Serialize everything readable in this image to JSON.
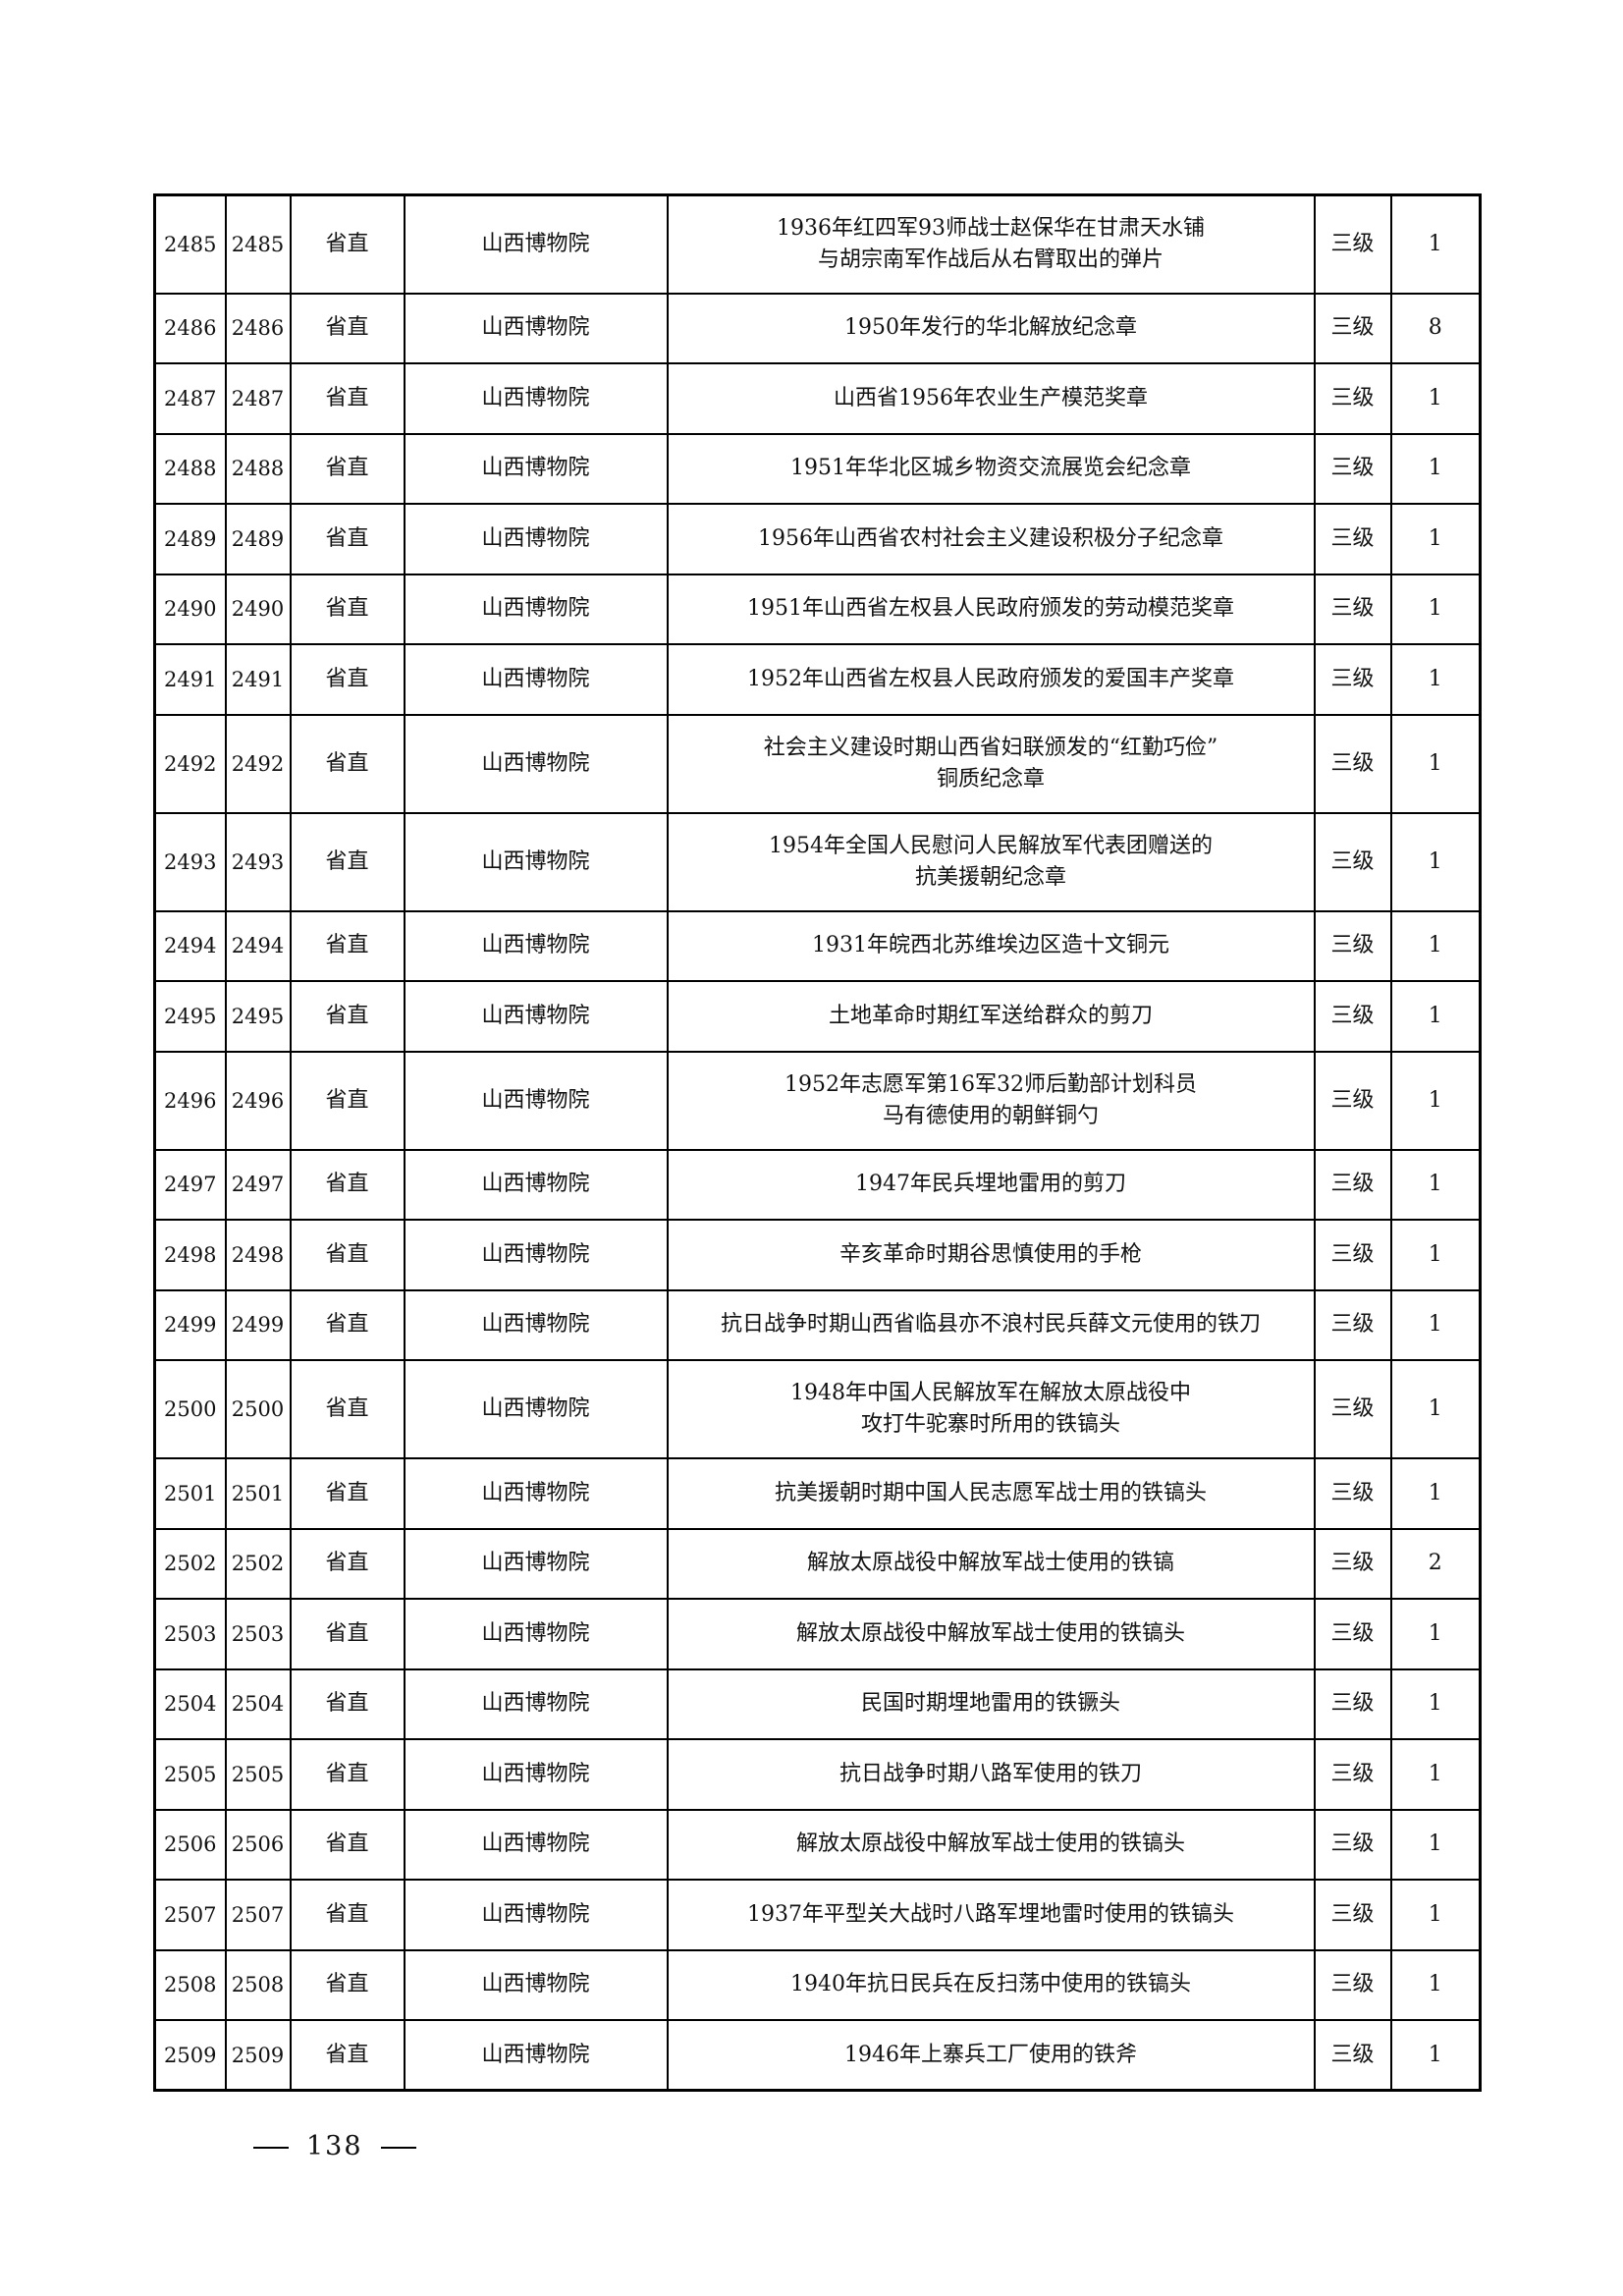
{
  "table": {
    "rows": [
      {
        "seq": "2485",
        "no": "2485",
        "level": "省直",
        "unit": "山西博物院",
        "name": [
          "1936年红四军93师战士赵保华在甘肃天水铺",
          "与胡宗南军作战后从右臂取出的弹片"
        ],
        "grade": "三级",
        "qty": "1"
      },
      {
        "seq": "2486",
        "no": "2486",
        "level": "省直",
        "unit": "山西博物院",
        "name": [
          "1950年发行的华北解放纪念章"
        ],
        "grade": "三级",
        "qty": "8"
      },
      {
        "seq": "2487",
        "no": "2487",
        "level": "省直",
        "unit": "山西博物院",
        "name": [
          "山西省1956年农业生产模范奖章"
        ],
        "grade": "三级",
        "qty": "1"
      },
      {
        "seq": "2488",
        "no": "2488",
        "level": "省直",
        "unit": "山西博物院",
        "name": [
          "1951年华北区城乡物资交流展览会纪念章"
        ],
        "grade": "三级",
        "qty": "1"
      },
      {
        "seq": "2489",
        "no": "2489",
        "level": "省直",
        "unit": "山西博物院",
        "name": [
          "1956年山西省农村社会主义建设积极分子纪念章"
        ],
        "grade": "三级",
        "qty": "1"
      },
      {
        "seq": "2490",
        "no": "2490",
        "level": "省直",
        "unit": "山西博物院",
        "name": [
          "1951年山西省左权县人民政府颁发的劳动模范奖章"
        ],
        "grade": "三级",
        "qty": "1"
      },
      {
        "seq": "2491",
        "no": "2491",
        "level": "省直",
        "unit": "山西博物院",
        "name": [
          "1952年山西省左权县人民政府颁发的爱国丰产奖章"
        ],
        "grade": "三级",
        "qty": "1"
      },
      {
        "seq": "2492",
        "no": "2492",
        "level": "省直",
        "unit": "山西博物院",
        "name": [
          "社会主义建设时期山西省妇联颁发的“红勤巧俭”",
          "铜质纪念章"
        ],
        "grade": "三级",
        "qty": "1"
      },
      {
        "seq": "2493",
        "no": "2493",
        "level": "省直",
        "unit": "山西博物院",
        "name": [
          "1954年全国人民慰问人民解放军代表团赠送的",
          "抗美援朝纪念章"
        ],
        "grade": "三级",
        "qty": "1"
      },
      {
        "seq": "2494",
        "no": "2494",
        "level": "省直",
        "unit": "山西博物院",
        "name": [
          "1931年皖西北苏维埃边区造十文铜元"
        ],
        "grade": "三级",
        "qty": "1"
      },
      {
        "seq": "2495",
        "no": "2495",
        "level": "省直",
        "unit": "山西博物院",
        "name": [
          "土地革命时期红军送给群众的剪刀"
        ],
        "grade": "三级",
        "qty": "1"
      },
      {
        "seq": "2496",
        "no": "2496",
        "level": "省直",
        "unit": "山西博物院",
        "name": [
          "1952年志愿军第16军32师后勤部计划科员",
          "马有德使用的朝鲜铜勺"
        ],
        "grade": "三级",
        "qty": "1"
      },
      {
        "seq": "2497",
        "no": "2497",
        "level": "省直",
        "unit": "山西博物院",
        "name": [
          "1947年民兵埋地雷用的剪刀"
        ],
        "grade": "三级",
        "qty": "1"
      },
      {
        "seq": "2498",
        "no": "2498",
        "level": "省直",
        "unit": "山西博物院",
        "name": [
          "辛亥革命时期谷思慎使用的手枪"
        ],
        "grade": "三级",
        "qty": "1"
      },
      {
        "seq": "2499",
        "no": "2499",
        "level": "省直",
        "unit": "山西博物院",
        "name": [
          "抗日战争时期山西省临县亦不浪村民兵薛文元使用的铁刀"
        ],
        "grade": "三级",
        "qty": "1"
      },
      {
        "seq": "2500",
        "no": "2500",
        "level": "省直",
        "unit": "山西博物院",
        "name": [
          "1948年中国人民解放军在解放太原战役中",
          "攻打牛驼寨时所用的铁镐头"
        ],
        "grade": "三级",
        "qty": "1"
      },
      {
        "seq": "2501",
        "no": "2501",
        "level": "省直",
        "unit": "山西博物院",
        "name": [
          "抗美援朝时期中国人民志愿军战士用的铁镐头"
        ],
        "grade": "三级",
        "qty": "1"
      },
      {
        "seq": "2502",
        "no": "2502",
        "level": "省直",
        "unit": "山西博物院",
        "name": [
          "解放太原战役中解放军战士使用的铁镐"
        ],
        "grade": "三级",
        "qty": "2"
      },
      {
        "seq": "2503",
        "no": "2503",
        "level": "省直",
        "unit": "山西博物院",
        "name": [
          "解放太原战役中解放军战士使用的铁镐头"
        ],
        "grade": "三级",
        "qty": "1"
      },
      {
        "seq": "2504",
        "no": "2504",
        "level": "省直",
        "unit": "山西博物院",
        "name": [
          "民国时期埋地雷用的铁镢头"
        ],
        "grade": "三级",
        "qty": "1"
      },
      {
        "seq": "2505",
        "no": "2505",
        "level": "省直",
        "unit": "山西博物院",
        "name": [
          "抗日战争时期八路军使用的铁刀"
        ],
        "grade": "三级",
        "qty": "1"
      },
      {
        "seq": "2506",
        "no": "2506",
        "level": "省直",
        "unit": "山西博物院",
        "name": [
          "解放太原战役中解放军战士使用的铁镐头"
        ],
        "grade": "三级",
        "qty": "1"
      },
      {
        "seq": "2507",
        "no": "2507",
        "level": "省直",
        "unit": "山西博物院",
        "name": [
          "1937年平型关大战时八路军埋地雷时使用的铁镐头"
        ],
        "grade": "三级",
        "qty": "1"
      },
      {
        "seq": "2508",
        "no": "2508",
        "level": "省直",
        "unit": "山西博物院",
        "name": [
          "1940年抗日民兵在反扫荡中使用的铁镐头"
        ],
        "grade": "三级",
        "qty": "1"
      },
      {
        "seq": "2509",
        "no": "2509",
        "level": "省直",
        "unit": "山西博物院",
        "name": [
          "1946年上寨兵工厂使用的铁斧"
        ],
        "grade": "三级",
        "qty": "1"
      }
    ]
  },
  "footer": {
    "page_number": "138"
  }
}
